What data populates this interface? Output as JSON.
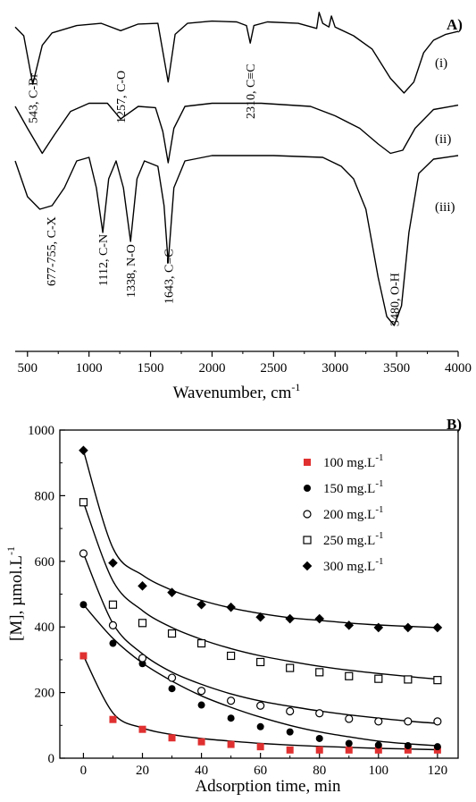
{
  "chart_data": [
    {
      "panel_label": "A)",
      "type": "line",
      "xlabel": "Wavenumber, cm",
      "xlabel_sup": "-1",
      "xlim": [
        400,
        4000
      ],
      "xticks": [
        500,
        1000,
        1500,
        2000,
        2500,
        3000,
        3500,
        4000
      ],
      "grid": false,
      "series": [
        {
          "name": "(i)",
          "points": [
            [
              400,
              0.1
            ],
            [
              470,
              0.22
            ],
            [
              543,
              0.88
            ],
            [
              620,
              0.35
            ],
            [
              700,
              0.18
            ],
            [
              900,
              0.08
            ],
            [
              1100,
              0.05
            ],
            [
              1257,
              0.15
            ],
            [
              1400,
              0.06
            ],
            [
              1560,
              0.05
            ],
            [
              1643,
              0.85
            ],
            [
              1700,
              0.2
            ],
            [
              1800,
              0.05
            ],
            [
              2000,
              0.02
            ],
            [
              2200,
              0.03
            ],
            [
              2280,
              0.08
            ],
            [
              2310,
              0.32
            ],
            [
              2340,
              0.08
            ],
            [
              2450,
              0.03
            ],
            [
              2700,
              0.05
            ],
            [
              2850,
              0.12
            ],
            [
              2870,
              -0.1
            ],
            [
              2900,
              0.05
            ],
            [
              2950,
              0.1
            ],
            [
              2970,
              -0.05
            ],
            [
              3000,
              0.1
            ],
            [
              3150,
              0.22
            ],
            [
              3300,
              0.4
            ],
            [
              3450,
              0.8
            ],
            [
              3560,
              1.0
            ],
            [
              3640,
              0.85
            ],
            [
              3720,
              0.45
            ],
            [
              3800,
              0.28
            ],
            [
              3900,
              0.2
            ],
            [
              4000,
              0.16
            ]
          ]
        },
        {
          "name": "(ii)",
          "points": [
            [
              400,
              0.1
            ],
            [
              500,
              0.45
            ],
            [
              620,
              0.85
            ],
            [
              720,
              0.55
            ],
            [
              850,
              0.18
            ],
            [
              1000,
              0.05
            ],
            [
              1150,
              0.05
            ],
            [
              1257,
              0.3
            ],
            [
              1400,
              0.1
            ],
            [
              1540,
              0.12
            ],
            [
              1600,
              0.5
            ],
            [
              1643,
              1.0
            ],
            [
              1690,
              0.45
            ],
            [
              1780,
              0.1
            ],
            [
              2000,
              0.05
            ],
            [
              2400,
              0.05
            ],
            [
              2800,
              0.1
            ],
            [
              3000,
              0.25
            ],
            [
              3200,
              0.45
            ],
            [
              3350,
              0.7
            ],
            [
              3450,
              0.85
            ],
            [
              3550,
              0.8
            ],
            [
              3650,
              0.45
            ],
            [
              3800,
              0.15
            ],
            [
              4000,
              0.08
            ]
          ]
        },
        {
          "name": "(iii)",
          "points": [
            [
              400,
              0.05
            ],
            [
              500,
              0.25
            ],
            [
              600,
              0.32
            ],
            [
              700,
              0.3
            ],
            [
              800,
              0.2
            ],
            [
              900,
              0.05
            ],
            [
              1000,
              0.03
            ],
            [
              1060,
              0.2
            ],
            [
              1112,
              0.45
            ],
            [
              1160,
              0.15
            ],
            [
              1220,
              0.05
            ],
            [
              1280,
              0.2
            ],
            [
              1338,
              0.5
            ],
            [
              1390,
              0.15
            ],
            [
              1450,
              0.05
            ],
            [
              1560,
              0.08
            ],
            [
              1610,
              0.3
            ],
            [
              1643,
              0.62
            ],
            [
              1690,
              0.2
            ],
            [
              1780,
              0.05
            ],
            [
              2000,
              0.02
            ],
            [
              2500,
              0.02
            ],
            [
              2900,
              0.03
            ],
            [
              3050,
              0.08
            ],
            [
              3150,
              0.15
            ],
            [
              3250,
              0.32
            ],
            [
              3350,
              0.7
            ],
            [
              3420,
              0.92
            ],
            [
              3480,
              0.97
            ],
            [
              3540,
              0.86
            ],
            [
              3600,
              0.45
            ],
            [
              3680,
              0.12
            ],
            [
              3800,
              0.04
            ],
            [
              4000,
              0.02
            ]
          ]
        }
      ],
      "annotations": [
        {
          "text": "543, C-Br",
          "x": 543
        },
        {
          "text": "1257, C-O",
          "x": 1257
        },
        {
          "text": "2310, C≡C",
          "x": 2310
        },
        {
          "text": "677-755, C-X",
          "x": 690
        },
        {
          "text": "1112, C-N",
          "x": 1112
        },
        {
          "text": "1338, N-O",
          "x": 1338
        },
        {
          "text": "1643, C=C",
          "x": 1643
        },
        {
          "text": "3480, O-H",
          "x": 3480
        }
      ]
    },
    {
      "panel_label": "B)",
      "type": "scatter",
      "xlabel": "Adsorption time, min",
      "ylabel": "[M], µmol.L",
      "ylabel_sup": "-1",
      "xlim": [
        -8,
        127
      ],
      "ylim": [
        0,
        1000
      ],
      "xticks": [
        0,
        20,
        40,
        60,
        80,
        100,
        120
      ],
      "yticks": [
        0,
        200,
        400,
        600,
        800,
        1000
      ],
      "grid": false,
      "legend_position": "top-right",
      "x": [
        0,
        10,
        20,
        30,
        40,
        50,
        60,
        70,
        80,
        90,
        100,
        110,
        120
      ],
      "series": [
        {
          "name": "100 mg.L",
          "name_sup": "-1",
          "marker": "square-filled",
          "color": "#e03030",
          "values": [
            312,
            118,
            88,
            62,
            50,
            42,
            35,
            25,
            25,
            25,
            25,
            25,
            25
          ],
          "fit": [
            312,
            138,
            92,
            72,
            60,
            52,
            45,
            40,
            36,
            33,
            30,
            28,
            26
          ]
        },
        {
          "name": "150 mg.L",
          "name_sup": "-1",
          "marker": "circle-filled",
          "color": "#000000",
          "values": [
            468,
            350,
            288,
            212,
            162,
            122,
            96,
            80,
            60,
            45,
            40,
            38,
            35
          ],
          "fit": [
            468,
            365,
            290,
            235,
            190,
            155,
            125,
            100,
            80,
            65,
            52,
            44,
            38
          ]
        },
        {
          "name": "200 mg.L",
          "name_sup": "-1",
          "marker": "circle-open",
          "color": "#000000",
          "values": [
            624,
            405,
            305,
            245,
            205,
            175,
            160,
            143,
            137,
            120,
            112,
            112,
            112
          ],
          "fit": [
            624,
            410,
            318,
            262,
            225,
            196,
            174,
            158,
            144,
            132,
            122,
            113,
            106
          ]
        },
        {
          "name": "250 mg.L",
          "name_sup": "-1",
          "marker": "square-open",
          "color": "#000000",
          "values": [
            780,
            468,
            412,
            380,
            350,
            312,
            293,
            275,
            262,
            250,
            242,
            240,
            238
          ],
          "fit": [
            780,
            540,
            450,
            398,
            362,
            334,
            312,
            295,
            280,
            268,
            258,
            249,
            241
          ]
        },
        {
          "name": "300 mg.L",
          "name_sup": "-1",
          "marker": "diamond-filled",
          "color": "#000000",
          "values": [
            938,
            595,
            525,
            505,
            468,
            460,
            430,
            425,
            425,
            405,
            398,
            398,
            398
          ],
          "fit": [
            938,
            640,
            558,
            512,
            481,
            458,
            441,
            428,
            420,
            412,
            406,
            402,
            398
          ]
        }
      ]
    }
  ]
}
